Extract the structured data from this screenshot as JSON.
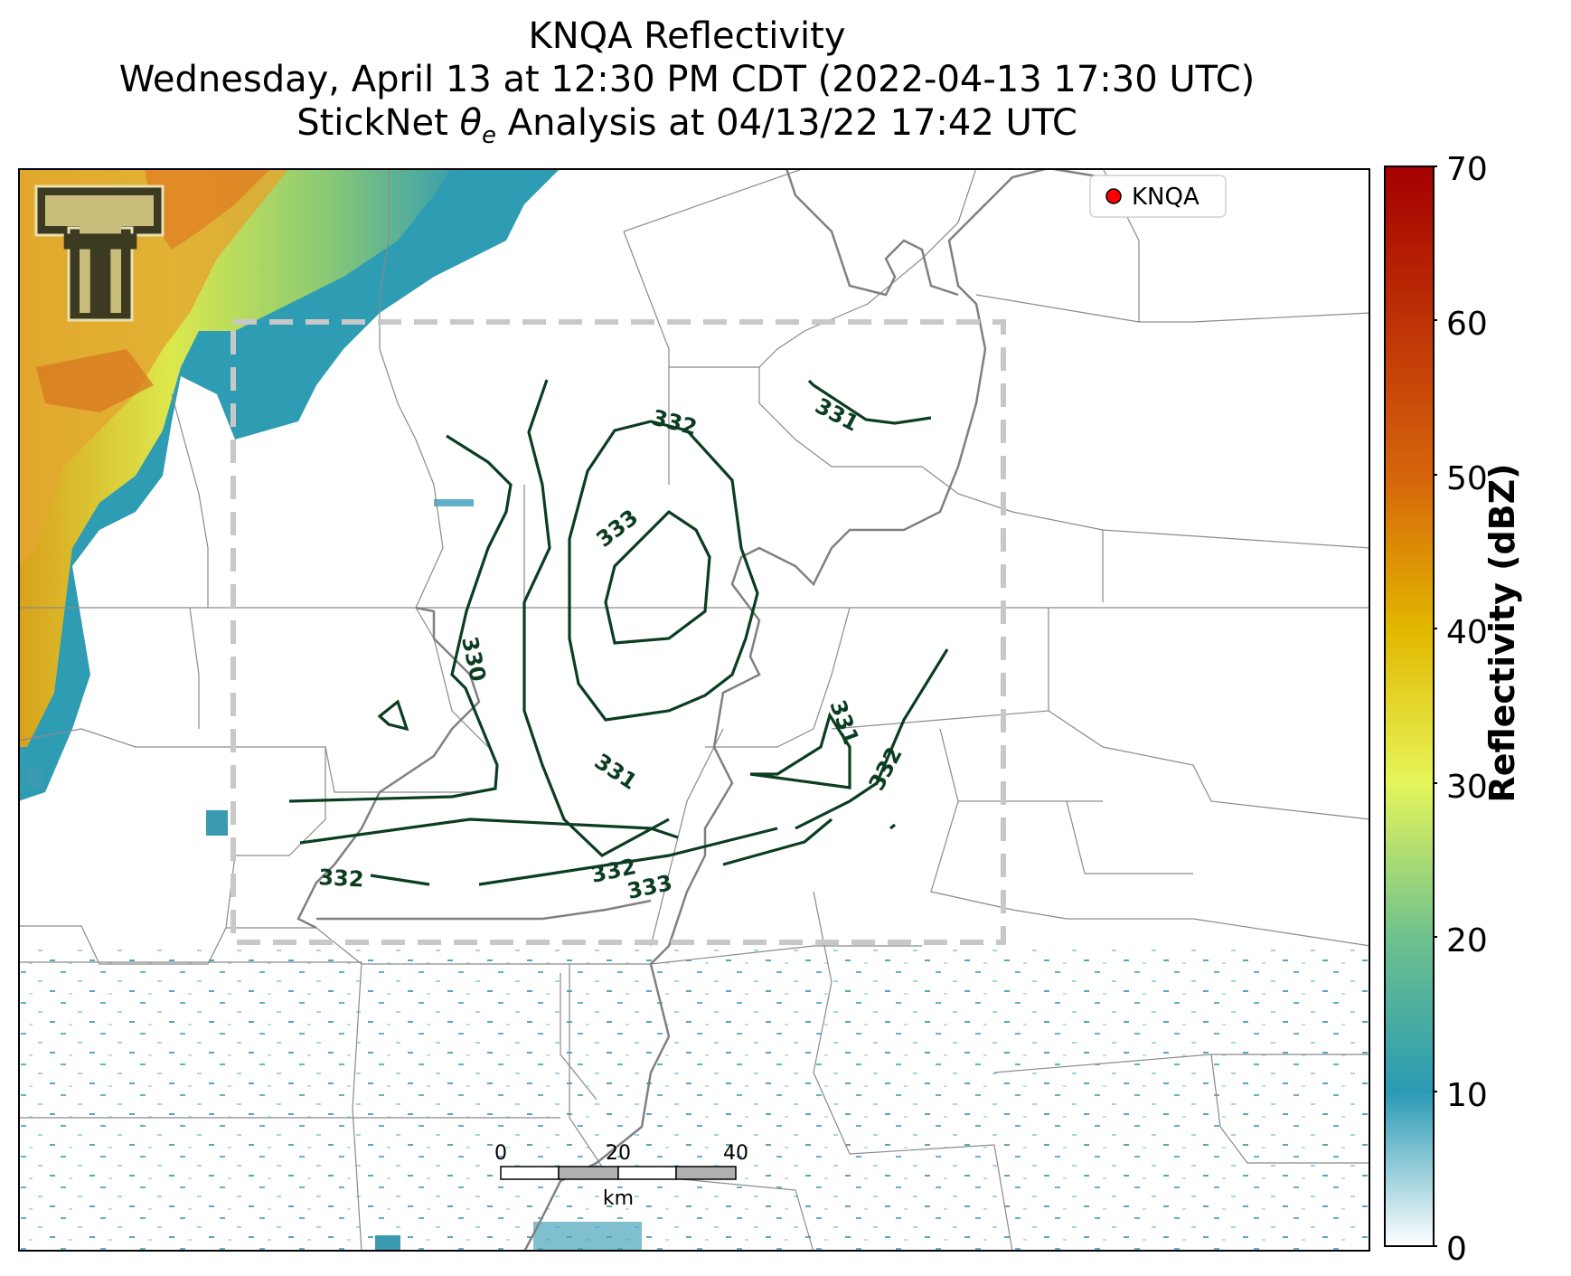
{
  "title": {
    "line1": "KNQA Reflectivity",
    "line2": "Wednesday, April 13 at 12:30 PM CDT (2022-04-13 17:30 UTC)",
    "line3_prefix": "StickNet ",
    "line3_theta": "θ",
    "line3_sub": "e",
    "line3_suffix": " Analysis at 04/13/22 17:42 UTC"
  },
  "legend": {
    "label": "KNQA",
    "marker_color": "#ff0000"
  },
  "logo": {
    "text": "T",
    "description": "Texas Tech double-T logo"
  },
  "colorbar": {
    "label": "Reflectivity (dBZ)",
    "ticks": [
      "0",
      "10",
      "20",
      "30",
      "40",
      "50",
      "60",
      "70"
    ],
    "min": 0,
    "max": 70,
    "stops": [
      "#ffffff",
      "#2a9ab4",
      "#6ec28e",
      "#e6f55a",
      "#e2b800",
      "#d6640c",
      "#a50000"
    ]
  },
  "scalebar": {
    "ticks": [
      "0",
      "20",
      "40"
    ],
    "unit": "km"
  },
  "contours": {
    "color": "#0b3d20",
    "labels": [
      "331",
      "332",
      "333",
      "330",
      "331",
      "331",
      "332",
      "332",
      "332",
      "333"
    ]
  },
  "analysis_box_color": "#c8c8c8"
}
